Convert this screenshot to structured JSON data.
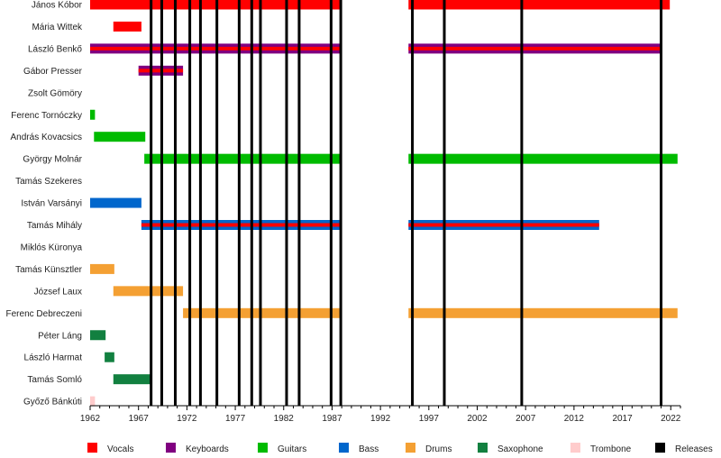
{
  "chart_data": {
    "type": "timeline",
    "x_axis": {
      "min": 1962,
      "max": 2023,
      "ticks": [
        1962,
        1967,
        1972,
        1977,
        1982,
        1987,
        1992,
        1997,
        2002,
        2007,
        2012,
        2017,
        2022
      ]
    },
    "roles": [
      {
        "key": "vocals",
        "label": "Vocals",
        "color": "#ff0000"
      },
      {
        "key": "keyboards",
        "label": "Keyboards",
        "color": "#800080"
      },
      {
        "key": "guitars",
        "label": "Guitars",
        "color": "#00bb00"
      },
      {
        "key": "bass",
        "label": "Bass",
        "color": "#0066cc"
      },
      {
        "key": "drums",
        "label": "Drums",
        "color": "#f4a033"
      },
      {
        "key": "saxophone",
        "label": "Saxophone",
        "color": "#128040"
      },
      {
        "key": "trombone",
        "label": "Trombone",
        "color": "#ffcccc"
      },
      {
        "key": "releases",
        "label": "Releases",
        "color": "#000000"
      }
    ],
    "members": [
      {
        "name": "János Kóbor",
        "bars": [
          {
            "start": 1962.0,
            "end": 1987.9,
            "role": "vocals"
          },
          {
            "start": 1994.9,
            "end": 2021.9,
            "role": "vocals"
          }
        ]
      },
      {
        "name": "Mária Wittek",
        "bars": [
          {
            "start": 1964.4,
            "end": 1967.3,
            "role": "vocals"
          }
        ]
      },
      {
        "name": "László Benkő",
        "bars": [
          {
            "start": 1962.0,
            "end": 1987.9,
            "role": "keyboards",
            "stripe": "vocals"
          },
          {
            "start": 1994.9,
            "end": 2021.0,
            "role": "keyboards",
            "stripe": "vocals"
          }
        ]
      },
      {
        "name": "Gábor Presser",
        "bars": [
          {
            "start": 1967.0,
            "end": 1971.6,
            "role": "keyboards",
            "stripe": "vocals"
          }
        ]
      },
      {
        "name": "Zsolt Gömöry",
        "bars": []
      },
      {
        "name": "Ferenc Tornóczky",
        "bars": [
          {
            "start": 1962.0,
            "end": 1962.5,
            "role": "guitars"
          }
        ]
      },
      {
        "name": "András Kovacsics",
        "bars": [
          {
            "start": 1962.4,
            "end": 1967.7,
            "role": "guitars"
          }
        ]
      },
      {
        "name": "György Molnár",
        "bars": [
          {
            "start": 1967.6,
            "end": 1987.9,
            "role": "guitars"
          },
          {
            "start": 1994.9,
            "end": 2022.7,
            "role": "guitars"
          }
        ]
      },
      {
        "name": "Tamás Szekeres",
        "bars": []
      },
      {
        "name": "István Varsányi",
        "bars": [
          {
            "start": 1962.0,
            "end": 1967.3,
            "role": "bass"
          }
        ]
      },
      {
        "name": "Tamás Mihály",
        "bars": [
          {
            "start": 1967.3,
            "end": 1987.9,
            "role": "bass",
            "stripe": "vocals"
          },
          {
            "start": 1994.9,
            "end": 2014.6,
            "role": "bass",
            "stripe": "vocals"
          }
        ]
      },
      {
        "name": "Miklós Küronya",
        "bars": []
      },
      {
        "name": "Tamás Künsztler",
        "bars": [
          {
            "start": 1962.0,
            "end": 1964.5,
            "role": "drums"
          }
        ]
      },
      {
        "name": "József Laux",
        "bars": [
          {
            "start": 1964.4,
            "end": 1971.6,
            "role": "drums"
          }
        ]
      },
      {
        "name": "Ferenc Debreczeni",
        "bars": [
          {
            "start": 1971.6,
            "end": 1987.9,
            "role": "drums"
          },
          {
            "start": 1994.9,
            "end": 2022.7,
            "role": "drums"
          }
        ]
      },
      {
        "name": "Péter Láng",
        "bars": [
          {
            "start": 1962.0,
            "end": 1963.6,
            "role": "saxophone"
          }
        ]
      },
      {
        "name": "László Harmat",
        "bars": [
          {
            "start": 1963.5,
            "end": 1964.5,
            "role": "saxophone"
          }
        ]
      },
      {
        "name": "Tamás Somló",
        "bars": [
          {
            "start": 1964.4,
            "end": 1968.4,
            "role": "saxophone"
          }
        ]
      },
      {
        "name": "Győző Bánkúti",
        "bars": [
          {
            "start": 1962.0,
            "end": 1962.5,
            "role": "trombone"
          }
        ]
      }
    ],
    "releases": [
      1968.3,
      1969.4,
      1970.8,
      1972.3,
      1973.4,
      1975.1,
      1977.4,
      1978.7,
      1979.6,
      1982.3,
      1983.6,
      1986.9,
      1987.9,
      1995.3,
      1998.6,
      2006.6,
      2021.0
    ]
  }
}
